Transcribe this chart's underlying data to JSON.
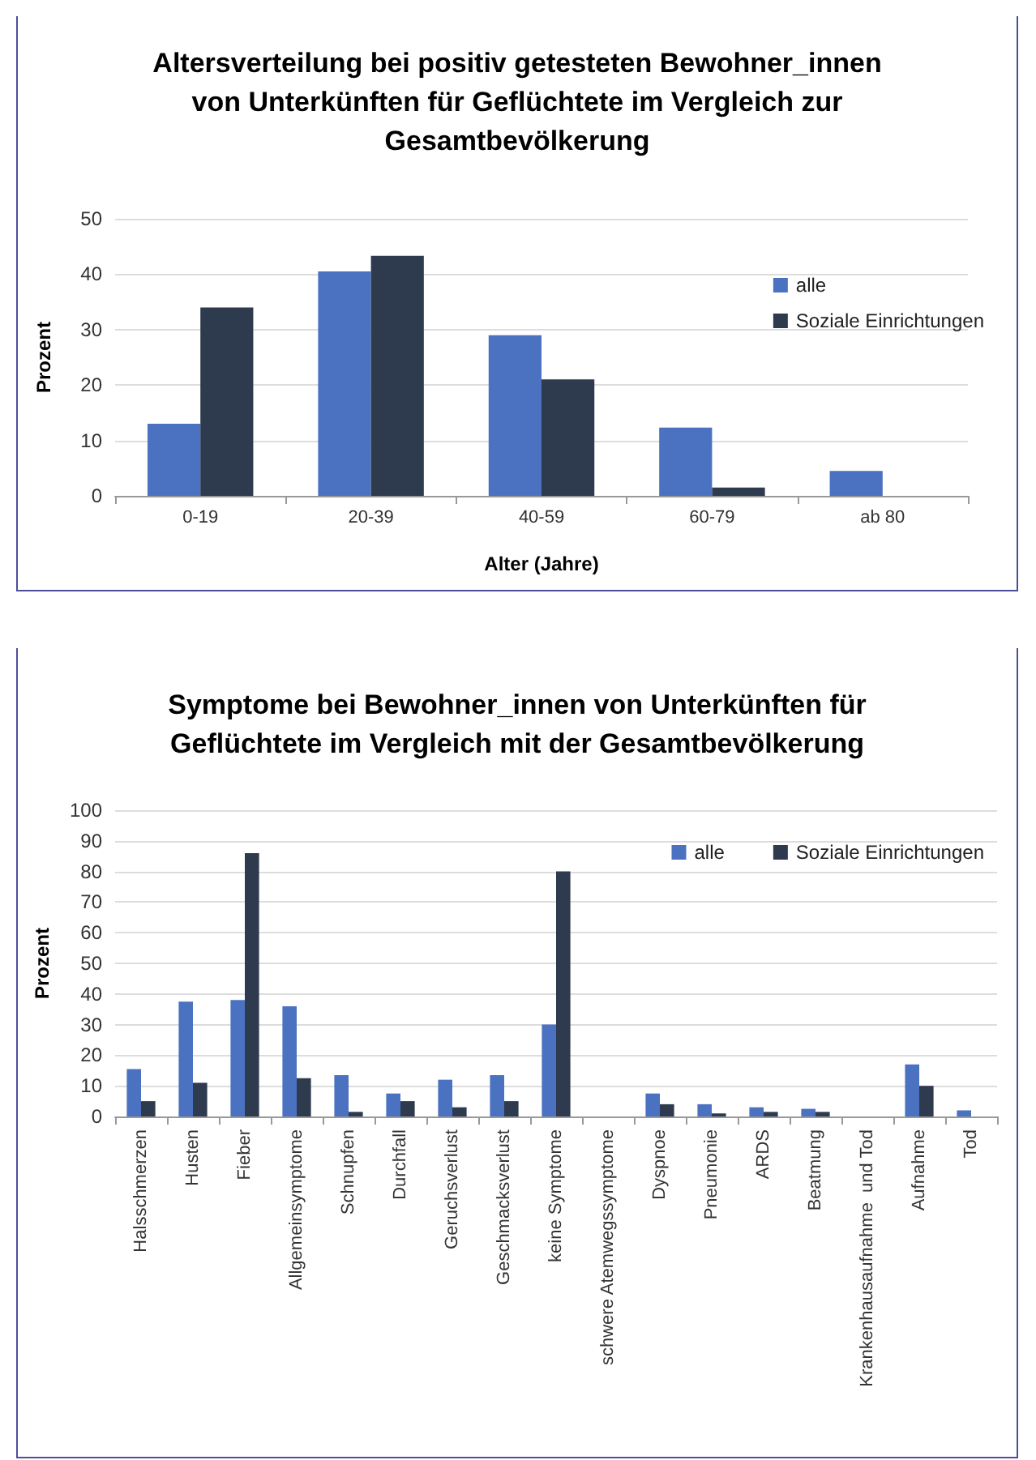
{
  "chart_data": [
    {
      "type": "bar",
      "title": "Altersverteilung bei positiv getesteten Bewohner_innen\nvon Unterkünften für Geflüchtete im Vergleich zur\nGesamtbevölkerung",
      "xlabel": "Alter (Jahre)",
      "ylabel": "Prozent",
      "categories": [
        "0-19",
        "20-39",
        "40-59",
        "60-79",
        "ab 80"
      ],
      "series": [
        {
          "name": "alle",
          "color": "#4a72c0",
          "values": [
            13,
            40.5,
            29,
            12.3,
            4.5
          ]
        },
        {
          "name": "Soziale Einrichtungen",
          "color": "#2e3a4e",
          "values": [
            34,
            43.3,
            21,
            1.5,
            0
          ]
        }
      ],
      "ylim": [
        0,
        50
      ],
      "yticks": [
        0,
        10,
        20,
        30,
        40,
        50
      ],
      "grid": "y",
      "legend": "right"
    },
    {
      "type": "bar",
      "title": "Symptome bei Bewohner_innen von Unterkünften für\nGeflüchtete im Vergleich mit der Gesamtbevölkerung",
      "ylabel": "Prozent",
      "categories": [
        "Halsschmerzen",
        "Husten",
        "Fieber",
        "Allgemeinsymptome",
        "Schnupfen",
        "Durchfall",
        "Geruchsverlust",
        "Geschmacksverlust",
        "keine Symptome",
        "schwere Atemwegssymptome",
        "Dyspnoe",
        "Pneumonie",
        "ARDS",
        "Beatmung",
        "Krankenhausaufnahme  und Tod",
        "Aufnahme",
        "Tod"
      ],
      "series": [
        {
          "name": "alle",
          "color": "#4a72c0",
          "values": [
            15.5,
            37.5,
            38,
            36,
            13.5,
            7.5,
            12,
            13.5,
            30,
            0,
            7.5,
            4,
            3,
            2.5,
            0,
            17,
            2
          ]
        },
        {
          "name": "Soziale Einrichtungen",
          "color": "#2e3a4e",
          "values": [
            5,
            11,
            86,
            12.5,
            1.5,
            5,
            3,
            5,
            80,
            0,
            4,
            1,
            1.5,
            1.5,
            0,
            10,
            0
          ]
        }
      ],
      "ylim": [
        0,
        100
      ],
      "yticks": [
        0,
        10,
        20,
        30,
        40,
        50,
        60,
        70,
        80,
        90,
        100
      ],
      "grid": "y",
      "legend": "top right"
    }
  ]
}
